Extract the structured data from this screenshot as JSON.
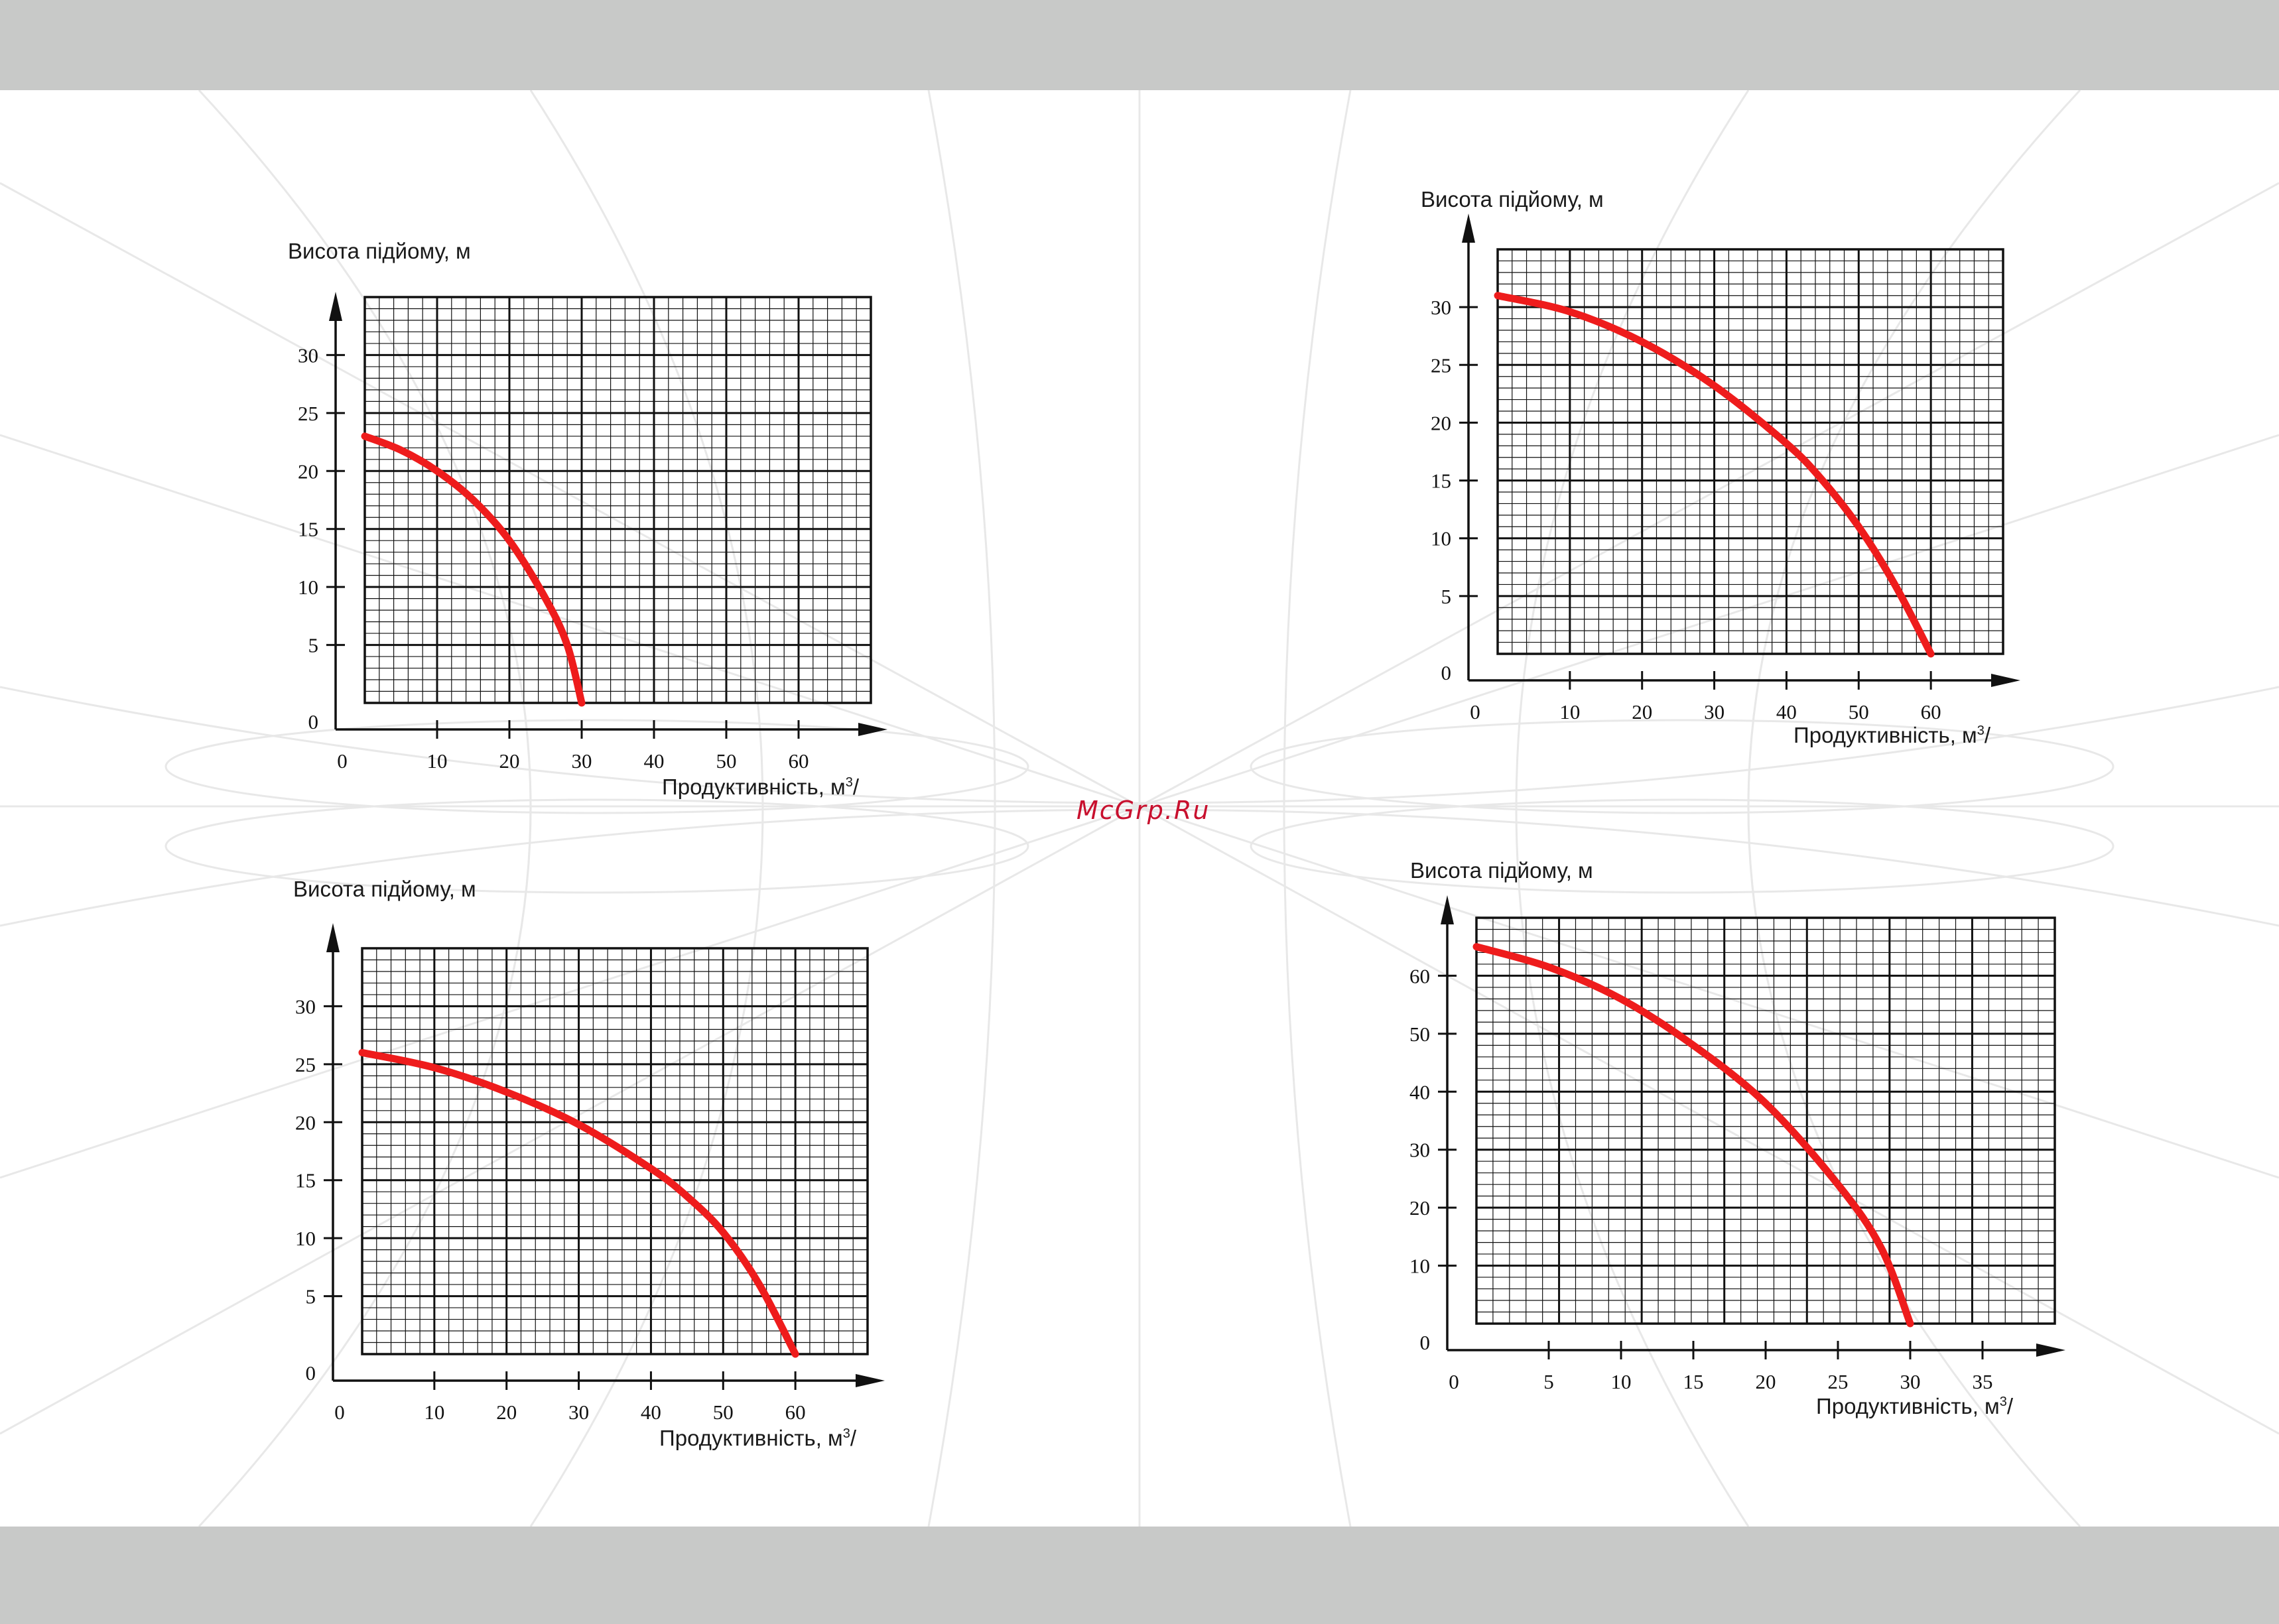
{
  "watermark": "McGrp.Ru",
  "colors": {
    "curve": "#ee1c1c",
    "grid": "#111111",
    "background": "#ffffff",
    "frame": "#c8c9c8"
  },
  "chart_data": [
    {
      "type": "line",
      "position": "top-left",
      "ylabel": "Висота підйому, м",
      "xlabel": "Продуктивність, м",
      "xlabel_sup": "3",
      "xlabel_suffix": "/",
      "x_ticks": [
        0,
        10,
        20,
        30,
        40,
        50,
        60
      ],
      "y_ticks": [
        0,
        5,
        10,
        15,
        20,
        25,
        30
      ],
      "xlim": [
        0,
        70
      ],
      "ylim": [
        0,
        35
      ],
      "grid": true,
      "series": [
        {
          "x": [
            0,
            5,
            10,
            15,
            20,
            25,
            28,
            30
          ],
          "y": [
            23,
            21.8,
            20,
            17.5,
            14,
            9,
            5,
            0
          ]
        }
      ]
    },
    {
      "type": "line",
      "position": "top-right",
      "ylabel": "Висота підйому, м",
      "xlabel": "Продуктивність, м",
      "xlabel_sup": "3",
      "xlabel_suffix": "/",
      "x_ticks": [
        0,
        10,
        20,
        30,
        40,
        50,
        60
      ],
      "y_ticks": [
        0,
        5,
        10,
        15,
        20,
        25,
        30
      ],
      "xlim": [
        0,
        70
      ],
      "ylim": [
        0,
        35
      ],
      "grid": true,
      "series": [
        {
          "x": [
            0,
            10,
            20,
            30,
            40,
            45,
            50,
            55,
            60
          ],
          "y": [
            31,
            29.6,
            27,
            23.2,
            18.2,
            15,
            11,
            6,
            0
          ]
        }
      ]
    },
    {
      "type": "line",
      "position": "bottom-left",
      "ylabel": "Висота підйому, м",
      "xlabel": "Продуктивність, м",
      "xlabel_sup": "3",
      "xlabel_suffix": "/",
      "x_ticks": [
        0,
        10,
        20,
        30,
        40,
        50,
        60
      ],
      "y_ticks": [
        0,
        5,
        10,
        15,
        20,
        25,
        30
      ],
      "xlim": [
        0,
        70
      ],
      "ylim": [
        0,
        35
      ],
      "grid": true,
      "series": [
        {
          "x": [
            0,
            10,
            20,
            30,
            40,
            45,
            50,
            55,
            60
          ],
          "y": [
            26,
            24.7,
            22.6,
            19.8,
            16,
            13.6,
            10.5,
            6,
            0
          ]
        }
      ]
    },
    {
      "type": "line",
      "position": "bottom-right",
      "ylabel": "Висота підйому, м",
      "xlabel": "Продуктивність, м",
      "xlabel_sup": "3",
      "xlabel_suffix": "/",
      "x_ticks": [
        0,
        5,
        10,
        15,
        20,
        25,
        30,
        35
      ],
      "y_ticks": [
        0,
        10,
        20,
        30,
        40,
        50,
        60
      ],
      "xlim": [
        0,
        40
      ],
      "ylim": [
        0,
        70
      ],
      "grid": true,
      "series": [
        {
          "x": [
            0,
            5,
            10,
            15,
            20,
            25,
            28,
            30
          ],
          "y": [
            65,
            61.5,
            56,
            48,
            38,
            24,
            13,
            0
          ]
        }
      ]
    }
  ]
}
